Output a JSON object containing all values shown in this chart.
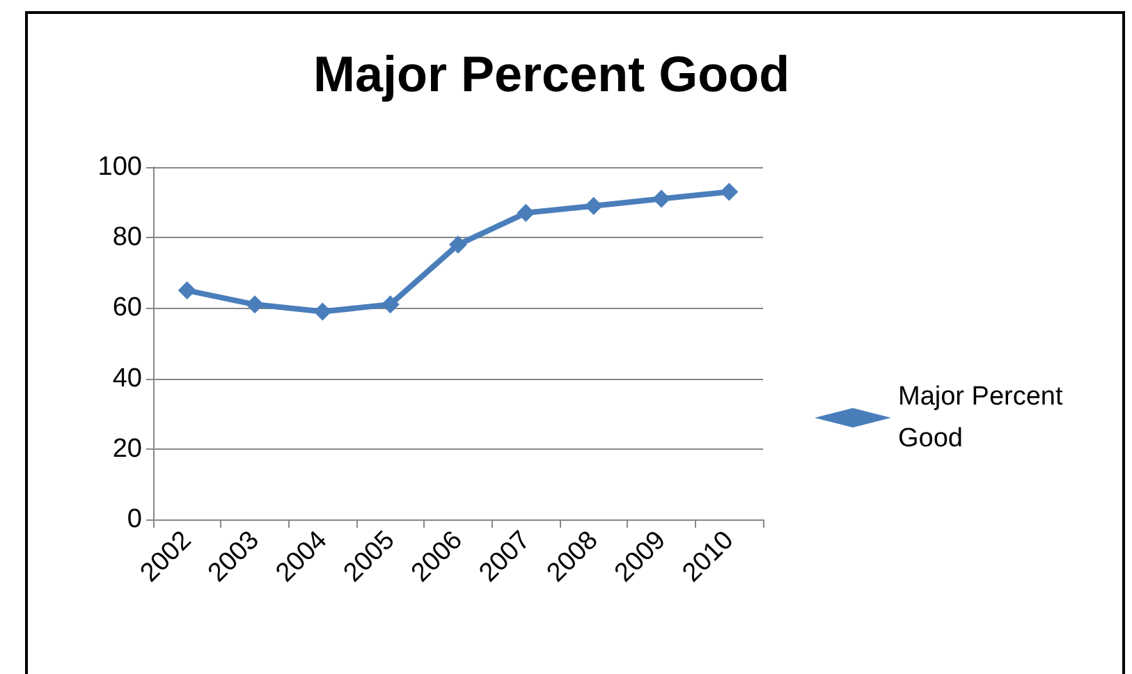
{
  "chart_data": {
    "type": "line",
    "title": "Major Percent Good",
    "categories": [
      "2002",
      "2003",
      "2004",
      "2005",
      "2006",
      "2007",
      "2008",
      "2009",
      "2010"
    ],
    "series": [
      {
        "name": "Major Percent Good",
        "color": "#4a7ebb",
        "values": [
          65,
          61,
          59,
          61,
          78,
          87,
          89,
          91,
          93
        ]
      }
    ],
    "ylim": [
      0,
      100
    ],
    "yticks": [
      0,
      20,
      40,
      60,
      80,
      100
    ],
    "grid": "y",
    "legend": "right",
    "marker": "diamond",
    "line_style": "solid"
  }
}
